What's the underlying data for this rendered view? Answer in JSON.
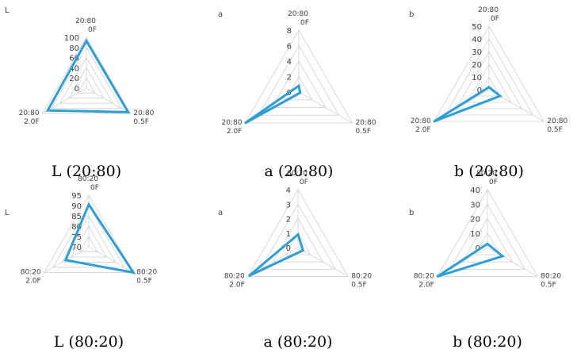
{
  "series_color": "#2e9fd6",
  "chart_data": [
    {
      "type": "radar",
      "corner_label": "L",
      "caption": "L (20:80)",
      "axes": [
        {
          "line1": "20:80",
          "line2": "0F"
        },
        {
          "line1": "20:80",
          "line2": "0.5F"
        },
        {
          "line1": "20:80",
          "line2": "2.0F"
        }
      ],
      "ticks": [
        "0",
        "20",
        "40",
        "60",
        "80",
        "100"
      ],
      "range": [
        0,
        100
      ],
      "values": [
        93,
        95,
        88
      ]
    },
    {
      "type": "radar",
      "corner_label": "a",
      "caption": "a (20:80)",
      "axes": [
        {
          "line1": "20:80",
          "line2": "0F"
        },
        {
          "line1": "20:80",
          "line2": "0.5F"
        },
        {
          "line1": "20:80",
          "line2": "2.0F"
        }
      ],
      "ticks": [
        "0",
        "2",
        "4",
        "6",
        "8"
      ],
      "range": [
        0,
        8
      ],
      "values": [
        0.8,
        0.2,
        8
      ]
    },
    {
      "type": "radar",
      "corner_label": "b",
      "caption": "b (20:80)",
      "axes": [
        {
          "line1": "20:80",
          "line2": "0F"
        },
        {
          "line1": "20:80",
          "line2": "0.5F"
        },
        {
          "line1": "20:80",
          "line2": "2.0F"
        }
      ],
      "ticks": [
        "0",
        "10",
        "20",
        "30",
        "40",
        "50"
      ],
      "range": [
        0,
        50
      ],
      "values": [
        2,
        10,
        50
      ]
    },
    {
      "type": "radar",
      "corner_label": "L",
      "caption": "L (80:20)",
      "axes": [
        {
          "line1": "80:20",
          "line2": "0F"
        },
        {
          "line1": "80:20",
          "line2": "0.5F"
        },
        {
          "line1": "80:20",
          "line2": "2.0F"
        }
      ],
      "ticks": [
        "70",
        "75",
        "80",
        "85",
        "90",
        "95"
      ],
      "range": [
        70,
        95
      ],
      "values": [
        90.5,
        95,
        83
      ]
    },
    {
      "type": "radar",
      "corner_label": "a",
      "caption": "a (80:20)",
      "axes": [
        {
          "line1": "80:20",
          "line2": "0F"
        },
        {
          "line1": "80:20",
          "line2": "0.5F"
        },
        {
          "line1": "80:20",
          "line2": "2.0F"
        }
      ],
      "ticks": [
        "0",
        "1",
        "2",
        "3",
        "4"
      ],
      "range": [
        0,
        4
      ],
      "values": [
        0.9,
        0.4,
        3.9
      ]
    },
    {
      "type": "radar",
      "corner_label": "b",
      "caption": "b (80:20)",
      "axes": [
        {
          "line1": "80:20",
          "line2": "0F"
        },
        {
          "line1": "80:20",
          "line2": "0.5F"
        },
        {
          "line1": "80:20",
          "line2": "2.0F"
        }
      ],
      "ticks": [
        "0",
        "10",
        "20",
        "30",
        "40"
      ],
      "range": [
        0,
        40
      ],
      "values": [
        2.5,
        12,
        40
      ]
    }
  ]
}
